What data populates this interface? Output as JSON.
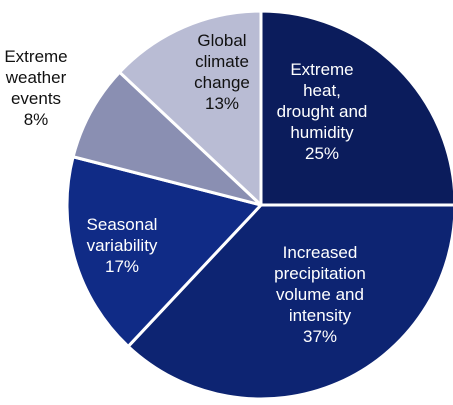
{
  "chart_data": {
    "type": "pie",
    "title": "",
    "slices": [
      {
        "label_lines": [
          "Extreme",
          "heat,",
          "drought and",
          "humidity"
        ],
        "value_label": "25%",
        "value": 25,
        "color": "#0b1c5c",
        "text_color": "#ffffff"
      },
      {
        "label_lines": [
          "Increased",
          "precipitation",
          "volume and",
          "intensity"
        ],
        "value_label": "37%",
        "value": 37,
        "color": "#0d2472",
        "text_color": "#ffffff"
      },
      {
        "label_lines": [
          "Seasonal",
          "variability"
        ],
        "value_label": "17%",
        "value": 17,
        "color": "#102b86",
        "text_color": "#ffffff"
      },
      {
        "label_lines": [
          "Extreme",
          "weather",
          "events"
        ],
        "value_label": "8%",
        "value": 8,
        "color": "#8a8fb2",
        "text_color": "#111111"
      },
      {
        "label_lines": [
          "Global",
          "climate",
          "change"
        ],
        "value_label": "13%",
        "value": 13,
        "color": "#b9bcd4",
        "text_color": "#111111"
      }
    ]
  }
}
